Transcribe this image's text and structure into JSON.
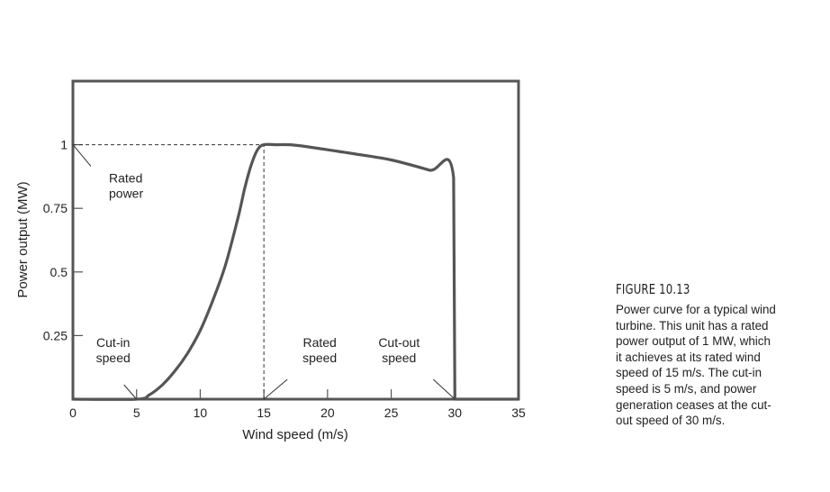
{
  "chart_data": {
    "type": "line",
    "xlabel": "Wind speed (m/s)",
    "ylabel": "Power output (MW)",
    "xlim": [
      0,
      35
    ],
    "ylim": [
      0,
      1.25
    ],
    "xticks": [
      0,
      5,
      10,
      15,
      20,
      25,
      30,
      35
    ],
    "xtick_labels": [
      "0",
      "5",
      "10",
      "15",
      "20",
      "25",
      "30",
      "35"
    ],
    "yticks": [
      0.25,
      0.5,
      0.75,
      1
    ],
    "ytick_labels": [
      "0.25",
      "0.5",
      "0.75",
      "1"
    ],
    "grid": false,
    "series": [
      {
        "x": [
          0,
          5,
          6,
          7,
          8,
          9,
          10,
          11,
          12,
          13,
          13.5,
          14,
          14.5,
          15,
          16,
          17,
          18,
          20,
          22,
          25,
          28,
          29.9,
          30,
          30.1,
          35
        ],
        "y": [
          0,
          0,
          0.017,
          0.055,
          0.11,
          0.18,
          0.27,
          0.39,
          0.53,
          0.72,
          0.83,
          0.92,
          0.98,
          1,
          1,
          1,
          0.995,
          0.98,
          0.965,
          0.94,
          0.9,
          0.87,
          0,
          0,
          0
        ]
      }
    ],
    "reference_lines": [
      {
        "x": [
          0,
          15
        ],
        "y": [
          1,
          1
        ]
      },
      {
        "x": [
          15,
          15
        ],
        "y": [
          0,
          1
        ]
      }
    ],
    "annotations": [
      {
        "lines": [
          "Rated",
          "power"
        ],
        "point": [
          0,
          1
        ]
      },
      {
        "lines": [
          "Cut-in",
          "speed"
        ],
        "point": [
          5,
          0
        ]
      },
      {
        "lines": [
          "Rated",
          "speed"
        ],
        "point": [
          15,
          0
        ]
      },
      {
        "lines": [
          "Cut-out",
          "speed"
        ],
        "point": [
          30,
          0
        ]
      }
    ]
  },
  "caption": {
    "title": "FIGURE 10.13",
    "lines": [
      "Power curve for a typical wind",
      "turbine. This unit has a rated",
      "power output of 1 MW, which",
      "it achieves at its rated wind",
      "speed of 15 m/s. The cut-in",
      "speed is 5 m/s, and power",
      "generation ceases at the cut-",
      "out speed of 30 m/s."
    ]
  }
}
